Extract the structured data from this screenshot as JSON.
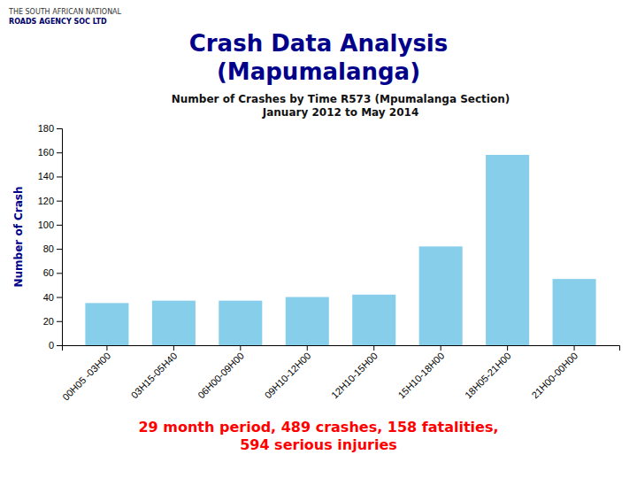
{
  "chart_data": {
    "type": "bar",
    "title": "Number of Crashes by Time R573 (Mpumalanga Section)\nJanuary 2012 to May 2014",
    "ylabel": "Number of Crash",
    "categories": [
      "00H05 -03H00",
      "03H15-05H40",
      "06H00-09H00",
      "09H10-12H00",
      "12H10-15H00",
      "15H10-18H00",
      "18H05-21H00",
      "21H00-00H00"
    ],
    "values": [
      35,
      37,
      37,
      40,
      42,
      82,
      158,
      55
    ],
    "color": "#87CEEB",
    "ylim": [
      0,
      180
    ],
    "yticks": [
      0,
      20,
      40,
      60,
      80,
      100,
      120,
      140,
      160,
      180
    ],
    "grid": false,
    "annotations": [
      "THE SOUTH AFRICAN NATIONAL",
      "ROADS AGENCY SOC LTD",
      "Crash Data Analysis",
      "(Mapumalanga)",
      "29 month period, 489 crashes, 158 fatalities,\n594 serious injuries"
    ]
  }
}
